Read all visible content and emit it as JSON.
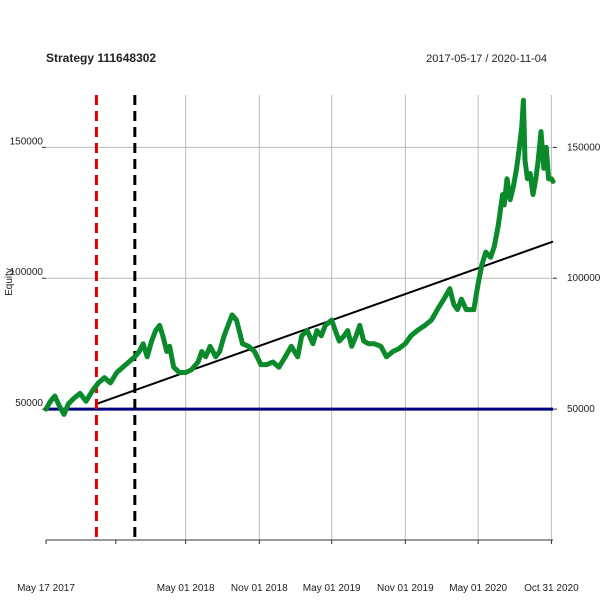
{
  "chart_data": {
    "type": "line",
    "title": "Strategy 111648302",
    "subtitle": "2017-05-17 / 2020-11-04",
    "ylabel": "Equity",
    "xlim": [
      "2017-05-17",
      "2020-11-04"
    ],
    "ylim": [
      0,
      170000
    ],
    "y_ticks": [
      50000,
      100000,
      150000
    ],
    "x_ticks": [
      {
        "date": "2017-05-17",
        "label": "May 17 2017"
      },
      {
        "date": "2018-05-01",
        "label": "May 01 2018"
      },
      {
        "date": "2018-11-01",
        "label": "Nov 01 2018"
      },
      {
        "date": "2019-05-01",
        "label": "May 01 2019"
      },
      {
        "date": "2019-11-01",
        "label": "Nov 01 2019"
      },
      {
        "date": "2020-05-01",
        "label": "May 01 2020"
      },
      {
        "date": "2020-10-31",
        "label": "Oct 31 2020"
      }
    ],
    "grid": true,
    "colors": {
      "equity": "#0a8a2a",
      "baseline": "#00007f",
      "trend": "#000000",
      "red_marker": "#dd0000",
      "black_marker": "#000000",
      "grid": "#bbbbbb"
    },
    "baseline": 50000,
    "trend_line": {
      "x": [
        "2017-09-20",
        "2020-11-04"
      ],
      "y": [
        52000,
        114000
      ]
    },
    "vlines": [
      {
        "date": "2017-09-20",
        "color": "red_marker",
        "style": "dashed"
      },
      {
        "date": "2017-12-25",
        "color": "black_marker",
        "style": "dashed"
      }
    ],
    "series": [
      {
        "x": [
          "2017-05-17",
          "2017-05-28",
          "2017-06-08",
          "2017-06-20",
          "2017-07-01",
          "2017-07-12",
          "2017-07-25",
          "2017-08-10",
          "2017-08-25",
          "2017-09-10",
          "2017-09-25",
          "2017-10-10",
          "2017-10-25",
          "2017-11-10",
          "2017-11-25",
          "2017-12-10",
          "2017-12-25",
          "2018-01-05",
          "2018-01-15",
          "2018-01-25",
          "2018-02-05",
          "2018-02-15",
          "2018-02-25",
          "2018-03-05",
          "2018-03-15",
          "2018-03-22",
          "2018-04-01",
          "2018-04-15",
          "2018-05-01",
          "2018-05-15",
          "2018-06-01",
          "2018-06-10",
          "2018-06-20",
          "2018-07-01",
          "2018-07-15",
          "2018-07-25",
          "2018-08-05",
          "2018-08-15",
          "2018-08-25",
          "2018-09-05",
          "2018-09-20",
          "2018-10-05",
          "2018-10-20",
          "2018-11-05",
          "2018-11-20",
          "2018-12-05",
          "2018-12-20",
          "2019-01-05",
          "2019-01-20",
          "2019-02-05",
          "2019-02-15",
          "2019-03-01",
          "2019-03-15",
          "2019-03-25",
          "2019-04-05",
          "2019-04-15",
          "2019-05-01",
          "2019-05-10",
          "2019-05-20",
          "2019-06-01",
          "2019-06-10",
          "2019-06-20",
          "2019-07-01",
          "2019-07-10",
          "2019-07-20",
          "2019-08-01",
          "2019-08-15",
          "2019-09-01",
          "2019-09-15",
          "2019-10-01",
          "2019-10-15",
          "2019-11-01",
          "2019-11-15",
          "2019-12-01",
          "2019-12-20",
          "2020-01-05",
          "2020-01-20",
          "2020-02-05",
          "2020-02-20",
          "2020-03-01",
          "2020-03-10",
          "2020-03-20",
          "2020-04-01",
          "2020-04-10",
          "2020-04-20",
          "2020-05-01",
          "2020-05-10",
          "2020-05-20",
          "2020-06-01",
          "2020-06-10",
          "2020-06-20",
          "2020-07-01",
          "2020-07-05",
          "2020-07-12",
          "2020-07-20",
          "2020-07-28",
          "2020-08-05",
          "2020-08-12",
          "2020-08-18",
          "2020-08-22",
          "2020-08-26",
          "2020-09-01",
          "2020-09-08",
          "2020-09-15",
          "2020-09-22",
          "2020-09-28",
          "2020-10-05",
          "2020-10-12",
          "2020-10-18",
          "2020-10-24",
          "2020-10-31",
          "2020-11-04"
        ],
        "y": [
          50000,
          53000,
          55000,
          51000,
          48000,
          52000,
          54000,
          56000,
          53000,
          57000,
          60000,
          62000,
          60000,
          64000,
          66000,
          68000,
          70000,
          72000,
          75000,
          70000,
          76000,
          80000,
          82000,
          78000,
          72000,
          74000,
          66000,
          64000,
          64000,
          65000,
          68000,
          72000,
          70000,
          74000,
          70000,
          72000,
          78000,
          82000,
          86000,
          84000,
          75000,
          74000,
          72000,
          67000,
          67000,
          68000,
          66000,
          70000,
          74000,
          70000,
          78000,
          80000,
          75000,
          80000,
          78000,
          82000,
          84000,
          80000,
          76000,
          78000,
          80000,
          74000,
          78000,
          82000,
          76000,
          75000,
          75000,
          74000,
          70000,
          72000,
          73000,
          75000,
          78000,
          80000,
          82000,
          84000,
          88000,
          92000,
          96000,
          90000,
          88000,
          92000,
          88000,
          88000,
          88000,
          98000,
          105000,
          110000,
          108000,
          112000,
          120000,
          132000,
          128000,
          138000,
          130000,
          135000,
          142000,
          150000,
          158000,
          168000,
          145000,
          138000,
          140000,
          132000,
          138000,
          145000,
          156000,
          142000,
          150000,
          138000,
          138000,
          137000
        ]
      }
    ]
  }
}
